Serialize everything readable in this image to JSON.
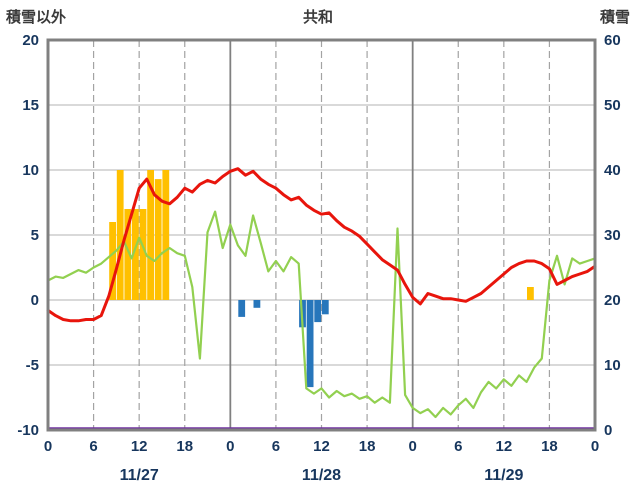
{
  "chart_data": {
    "type": "combo",
    "title": "共和",
    "left_axis": {
      "label": "積雪以外",
      "min": -10,
      "max": 20,
      "ticks": [
        20,
        15,
        10,
        5,
        0,
        -5,
        -10
      ]
    },
    "right_axis": {
      "label": "積雪",
      "min": 0,
      "max": 60,
      "ticks": [
        60,
        50,
        40,
        30,
        20,
        10,
        0
      ]
    },
    "x_axis": {
      "hours_span": 72,
      "tick_interval": 6,
      "tick_labels": [
        "0",
        "6",
        "12",
        "18",
        "0",
        "6",
        "12",
        "18",
        "0",
        "6",
        "12",
        "18",
        "0"
      ],
      "date_labels": [
        "11/27",
        "11/28",
        "11/29"
      ]
    },
    "grid": {
      "h_color": "#b3b3b3",
      "v_color": "#a3a3a3",
      "day_color": "#808080",
      "border_color": "#808080"
    },
    "text_color": "#17365d",
    "series": [
      {
        "name": "orange-bars",
        "type": "bar",
        "axis": "left",
        "color": "#ffc000",
        "points": [
          {
            "hour": 8,
            "value": 6
          },
          {
            "hour": 9,
            "value": 10
          },
          {
            "hour": 10,
            "value": 7
          },
          {
            "hour": 11,
            "value": 7
          },
          {
            "hour": 12,
            "value": 7
          },
          {
            "hour": 13,
            "value": 10
          },
          {
            "hour": 14,
            "value": 9.3
          },
          {
            "hour": 15,
            "value": 10
          },
          {
            "hour": 63,
            "value": 1
          }
        ]
      },
      {
        "name": "blue-bars",
        "type": "bar",
        "axis": "left",
        "color": "#2776bb",
        "points": [
          {
            "hour": 25,
            "value": -1.3
          },
          {
            "hour": 27,
            "value": -0.6
          },
          {
            "hour": 33,
            "value": -2.1
          },
          {
            "hour": 34,
            "value": -6.7
          },
          {
            "hour": 35,
            "value": -1.7
          },
          {
            "hour": 36,
            "value": -1.1
          }
        ]
      },
      {
        "name": "green-line",
        "type": "line",
        "axis": "left",
        "color": "#92d050",
        "width": 2.2,
        "values": [
          1.5,
          1.8,
          1.7,
          2.0,
          2.3,
          2.1,
          2.5,
          2.8,
          3.3,
          3.8,
          4.5,
          3.2,
          4.8,
          3.4,
          3.0,
          3.6,
          4.0,
          3.6,
          3.4,
          1.0,
          -4.5,
          5.2,
          6.8,
          4.0,
          5.8,
          4.2,
          3.4,
          6.5,
          4.4,
          2.2,
          3.0,
          2.2,
          3.3,
          2.8,
          -6.8,
          -7.2,
          -6.8,
          -7.5,
          -7.0,
          -7.4,
          -7.2,
          -7.6,
          -7.4,
          -7.9,
          -7.5,
          -7.9,
          5.5,
          -7.3,
          -8.3,
          -8.7,
          -8.4,
          -9.0,
          -8.3,
          -8.8,
          -8.1,
          -7.6,
          -8.3,
          -7.1,
          -6.3,
          -6.8,
          -6.1,
          -6.6,
          -5.8,
          -6.3,
          -5.2,
          -4.5,
          1.5,
          3.4,
          1.2,
          3.2,
          2.8,
          3.0,
          3.2
        ]
      },
      {
        "name": "red-line",
        "type": "line",
        "axis": "left",
        "color": "#e8150c",
        "width": 3,
        "values": [
          -0.8,
          -1.2,
          -1.5,
          -1.6,
          -1.6,
          -1.5,
          -1.5,
          -1.2,
          0.3,
          2.4,
          4.6,
          6.6,
          8.6,
          9.3,
          8.1,
          7.6,
          7.4,
          7.9,
          8.6,
          8.3,
          8.9,
          9.2,
          9.0,
          9.5,
          9.9,
          10.1,
          9.6,
          9.9,
          9.3,
          8.9,
          8.6,
          8.1,
          7.7,
          7.9,
          7.3,
          6.9,
          6.6,
          6.7,
          6.1,
          5.6,
          5.3,
          4.9,
          4.3,
          3.7,
          3.1,
          2.7,
          2.3,
          1.2,
          0.2,
          -0.3,
          0.5,
          0.3,
          0.1,
          0.1,
          0.0,
          -0.1,
          0.2,
          0.5,
          1.0,
          1.5,
          2.0,
          2.5,
          2.8,
          3.0,
          3.0,
          2.8,
          2.4,
          1.2,
          1.5,
          1.8,
          2.0,
          2.2,
          2.6
        ]
      },
      {
        "name": "purple-line",
        "type": "line",
        "axis": "right",
        "color": "#7030a0",
        "width": 2.5,
        "constant": 0
      }
    ]
  }
}
